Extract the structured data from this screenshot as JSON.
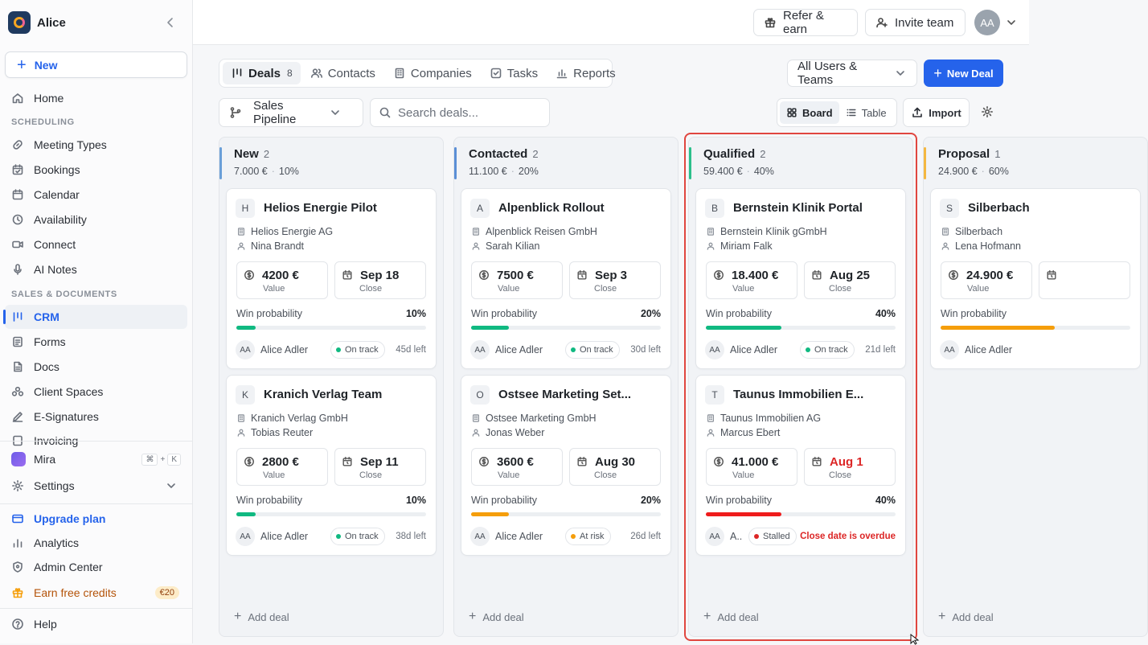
{
  "workspace": {
    "name": "Alice"
  },
  "sidebar": {
    "new_label": "New",
    "home": "Home",
    "section_scheduling": "SCHEDULING",
    "scheduling": [
      {
        "label": "Meeting Types",
        "icon": "link-icon"
      },
      {
        "label": "Bookings",
        "icon": "calendar-check-icon"
      },
      {
        "label": "Calendar",
        "icon": "calendar-icon"
      },
      {
        "label": "Availability",
        "icon": "clock-icon"
      },
      {
        "label": "Connect",
        "icon": "video-icon"
      },
      {
        "label": "AI Notes",
        "icon": "microphone-icon"
      }
    ],
    "section_sales": "SALES & DOCUMENTS",
    "sales": [
      {
        "label": "CRM",
        "icon": "crm-icon",
        "active": true
      },
      {
        "label": "Forms",
        "icon": "form-icon"
      },
      {
        "label": "Docs",
        "icon": "doc-icon"
      },
      {
        "label": "Client Spaces",
        "icon": "users-icon"
      },
      {
        "label": "E-Signatures",
        "icon": "pen-icon"
      },
      {
        "label": "Invoicing",
        "icon": "invoice-icon"
      }
    ],
    "mira": "Mira",
    "mira_shortcut": [
      "⌘",
      "+",
      "K"
    ],
    "settings": "Settings",
    "upgrade": "Upgrade plan",
    "analytics": "Analytics",
    "admin": "Admin Center",
    "earn": "Earn free credits",
    "earn_badge": "€20",
    "help": "Help"
  },
  "topbar": {
    "refer": "Refer & earn",
    "invite": "Invite team",
    "avatar": "AA"
  },
  "tabs": [
    {
      "label": "Deals",
      "count": "8",
      "active": true
    },
    {
      "label": "Contacts"
    },
    {
      "label": "Companies"
    },
    {
      "label": "Tasks"
    },
    {
      "label": "Reports"
    }
  ],
  "filters": {
    "users": "All Users & Teams",
    "new_deal": "New Deal",
    "pipeline": "Sales Pipeline",
    "search_placeholder": "Search deals...",
    "board": "Board",
    "table": "Table",
    "import": "Import"
  },
  "columns": [
    {
      "title": "New",
      "count": "2",
      "total": "7.000 €",
      "pct": "10%",
      "color": "#6a9fd8",
      "add": "Add deal",
      "cards": [
        {
          "letter": "H",
          "title": "Helios Energie Pilot",
          "company": "Helios Energie AG",
          "contact": "Nina Brandt",
          "value": "4200 €",
          "value_label": "Value",
          "close": "Sep 18",
          "close_label": "Close",
          "win_label": "Win probability",
          "win": "10%",
          "progress": 0.1,
          "progress_color": "#10b981",
          "owner_initials": "AA",
          "owner": "Alice Adler",
          "status": "On track",
          "status_color": "#10b981",
          "days": "45d left"
        },
        {
          "letter": "K",
          "title": "Kranich Verlag Team",
          "company": "Kranich Verlag GmbH",
          "contact": "Tobias Reuter",
          "value": "2800 €",
          "value_label": "Value",
          "close": "Sep 11",
          "close_label": "Close",
          "win_label": "Win probability",
          "win": "10%",
          "progress": 0.1,
          "progress_color": "#10b981",
          "owner_initials": "AA",
          "owner": "Alice Adler",
          "status": "On track",
          "status_color": "#10b981",
          "days": "38d left"
        }
      ]
    },
    {
      "title": "Contacted",
      "count": "2",
      "total": "11.100 €",
      "pct": "20%",
      "color": "#5b8fd6",
      "add": "Add deal",
      "cards": [
        {
          "letter": "A",
          "title": "Alpenblick Rollout",
          "company": "Alpenblick Reisen GmbH",
          "contact": "Sarah Kilian",
          "value": "7500 €",
          "value_label": "Value",
          "close": "Sep 3",
          "close_label": "Close",
          "win_label": "Win probability",
          "win": "20%",
          "progress": 0.2,
          "progress_color": "#10b981",
          "owner_initials": "AA",
          "owner": "Alice Adler",
          "status": "On track",
          "status_color": "#10b981",
          "days": "30d left"
        },
        {
          "letter": "O",
          "title": "Ostsee Marketing Set...",
          "company": "Ostsee Marketing GmbH",
          "contact": "Jonas Weber",
          "value": "3600 €",
          "value_label": "Value",
          "close": "Aug 30",
          "close_label": "Close",
          "win_label": "Win probability",
          "win": "20%",
          "progress": 0.2,
          "progress_color": "#f59e0b",
          "owner_initials": "AA",
          "owner": "Alice Adler",
          "status": "At risk",
          "status_color": "#f59e0b",
          "days": "26d left"
        }
      ]
    },
    {
      "title": "Qualified",
      "count": "2",
      "total": "59.400 €",
      "pct": "40%",
      "color": "#2bbf8a",
      "add": "Add deal",
      "cards": [
        {
          "letter": "B",
          "title": "Bernstein Klinik Portal",
          "company": "Bernstein Klinik gGmbH",
          "contact": "Miriam Falk",
          "value": "18.400 €",
          "value_label": "Value",
          "close": "Aug 25",
          "close_label": "Close",
          "win_label": "Win probability",
          "win": "40%",
          "progress": 0.4,
          "progress_color": "#10b981",
          "owner_initials": "AA",
          "owner": "Alice Adler",
          "status": "On track",
          "status_color": "#10b981",
          "days": "21d left"
        },
        {
          "letter": "T",
          "title": "Taunus Immobilien E...",
          "company": "Taunus Immobilien AG",
          "contact": "Marcus Ebert",
          "value": "41.000 €",
          "value_label": "Value",
          "close": "Aug 1",
          "close_label": "Close",
          "close_overdue": true,
          "win_label": "Win probability",
          "win": "40%",
          "progress": 0.4,
          "progress_color": "#ef1c1c",
          "owner_initials": "AA",
          "owner": "A..",
          "status": "Stalled",
          "status_color": "#dc2626",
          "days": "Close date is overdue",
          "days_overdue": true
        }
      ]
    },
    {
      "title": "Proposal",
      "count": "1",
      "total": "24.900 €",
      "pct": "60%",
      "color": "#f4b740",
      "add": "Add deal",
      "cards": [
        {
          "letter": "S",
          "title": "Silberbach",
          "company": "Silberbach",
          "contact": "Lena Hofmann",
          "value": "24.900 €",
          "value_label": "Value",
          "close": "",
          "close_label": "",
          "win_label": "Win probability",
          "win": "",
          "progress": 0.6,
          "progress_color": "#f59e0b",
          "owner_initials": "AA",
          "owner": "Alice Adler",
          "status": "",
          "status_color": "#10b981",
          "days": ""
        }
      ]
    }
  ]
}
